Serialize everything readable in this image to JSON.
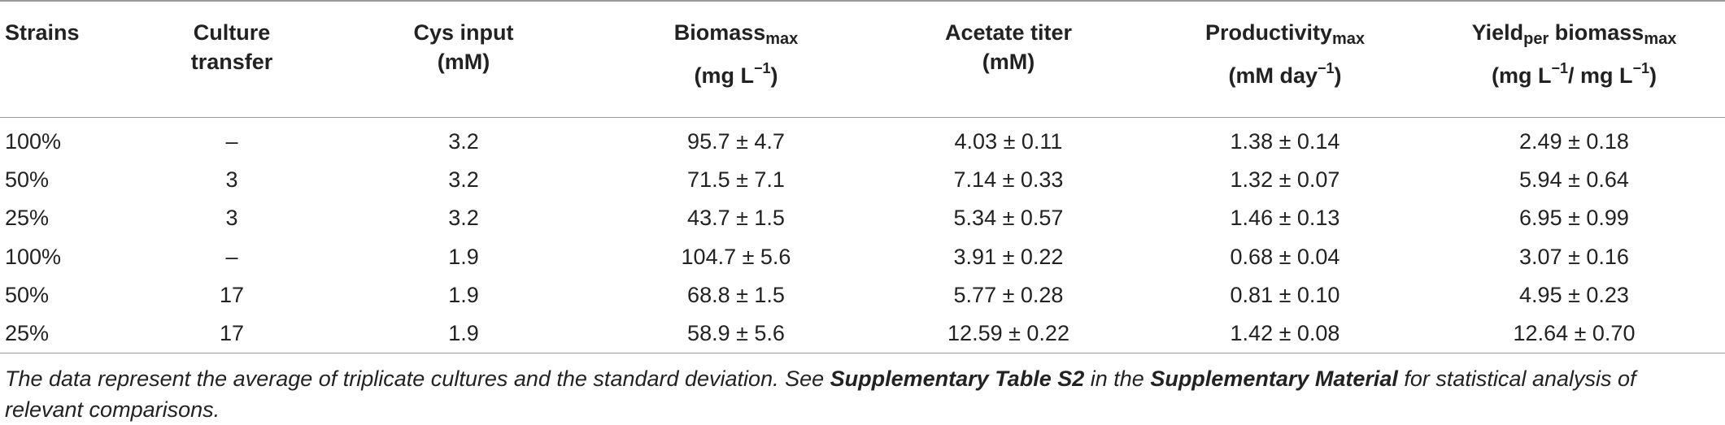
{
  "table": {
    "headers": [
      {
        "line1": "Strains",
        "line2": ""
      },
      {
        "line1": "Culture",
        "line2": "transfer"
      },
      {
        "line1": "Cys input",
        "line2": "(mM)"
      },
      {
        "line1_main": "Biomass",
        "line1_sub": "max",
        "line2_pre": "(mg L",
        "line2_sup": "−1",
        "line2_post": ")"
      },
      {
        "line1": "Acetate titer",
        "line2": "(mM)"
      },
      {
        "line1_main": "Productivity",
        "line1_sub": "max",
        "line2_pre": "(mM day",
        "line2_sup": "−1",
        "line2_post": ")"
      },
      {
        "line1_a": "Yield",
        "line1_sub1": "per",
        "line1_b": " biomass",
        "line1_sub2": "max",
        "line2_a": "(mg L",
        "line2_sup1": "−1",
        "line2_b": "/ mg L",
        "line2_sup2": "−1",
        "line2_c": ")"
      }
    ],
    "rows": [
      [
        "100%",
        "–",
        "3.2",
        "95.7 ± 4.7",
        "4.03 ± 0.11",
        "1.38 ± 0.14",
        "2.49 ± 0.18"
      ],
      [
        "50%",
        "3",
        "3.2",
        "71.5 ± 7.1",
        "7.14 ± 0.33",
        "1.32 ± 0.07",
        "5.94 ± 0.64"
      ],
      [
        "25%",
        "3",
        "3.2",
        "43.7 ± 1.5",
        "5.34 ± 0.57",
        "1.46 ± 0.13",
        "6.95 ± 0.99"
      ],
      [
        "100%",
        "–",
        "1.9",
        "104.7 ± 5.6",
        "3.91 ± 0.22",
        "0.68 ± 0.04",
        "3.07 ± 0.16"
      ],
      [
        "50%",
        "17",
        "1.9",
        "68.8 ± 1.5",
        "5.77 ± 0.28",
        "0.81 ± 0.10",
        "4.95 ± 0.23"
      ],
      [
        "25%",
        "17",
        "1.9",
        "58.9 ± 5.6",
        "12.59 ± 0.22",
        "1.42 ± 0.08",
        "12.64 ± 0.70"
      ]
    ]
  },
  "footnote": {
    "part1": "The data represent the average of triplicate cultures and the standard deviation. See ",
    "bold1": "Supplementary Table S2",
    "part2": " in the ",
    "bold2": "Supplementary Material",
    "part3": " for statistical analysis of relevant comparisons."
  }
}
